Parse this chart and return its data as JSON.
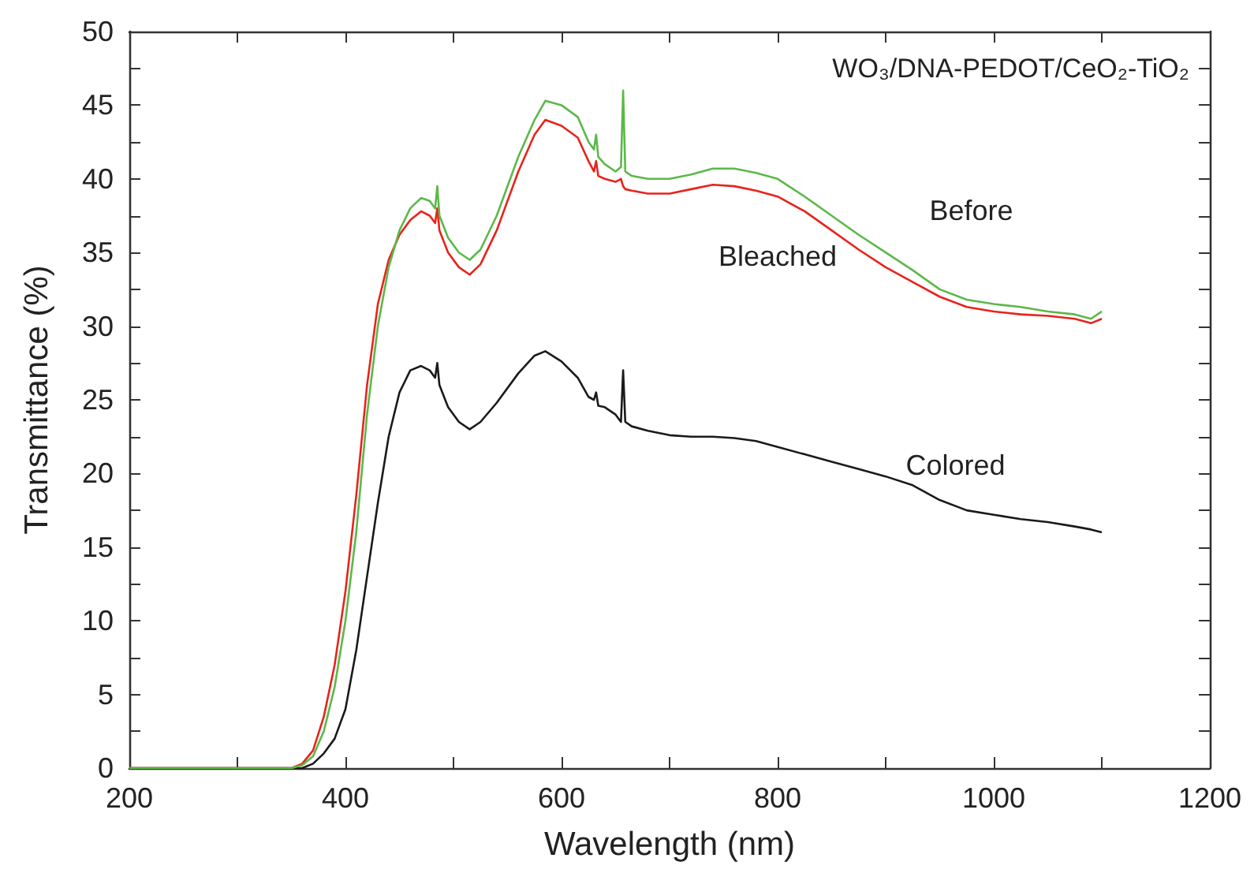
{
  "chart_data": {
    "type": "line",
    "title": "WO₃/DNA-PEDOT/CeO₂-TiO₂",
    "xlabel": "Wavelength (nm)",
    "ylabel": "Transmittance (%)",
    "xlim": [
      200,
      1200
    ],
    "xticks": [
      200,
      400,
      600,
      800,
      1000,
      1200
    ],
    "ylim": [
      0,
      50
    ],
    "yticks": [
      0,
      5,
      10,
      15,
      20,
      25,
      30,
      35,
      40,
      45,
      50
    ],
    "grid": false,
    "legend": false,
    "marker": "none",
    "line_style": "solid",
    "series": [
      {
        "name": "Before",
        "color": "#5cb848",
        "x": [
          200,
          350,
          360,
          370,
          380,
          390,
          400,
          410,
          420,
          430,
          440,
          450,
          460,
          470,
          478,
          483,
          485,
          487,
          495,
          505,
          515,
          525,
          540,
          560,
          575,
          585,
          600,
          615,
          625,
          630,
          632,
          634,
          640,
          650,
          655,
          657,
          659,
          665,
          680,
          700,
          720,
          740,
          760,
          780,
          800,
          825,
          850,
          875,
          900,
          925,
          950,
          975,
          1000,
          1025,
          1050,
          1075,
          1090,
          1100
        ],
        "values": [
          0,
          0,
          0.2,
          0.8,
          2.5,
          5.5,
          10,
          16,
          24,
          30,
          34,
          36.5,
          38,
          38.7,
          38.5,
          38,
          39.5,
          37.5,
          36,
          35,
          34.5,
          35.2,
          37.5,
          41.5,
          44,
          45.3,
          45,
          44.2,
          42.5,
          42,
          43,
          41.5,
          41,
          40.5,
          40.8,
          46,
          40.5,
          40.2,
          40,
          40,
          40.3,
          40.7,
          40.7,
          40.4,
          40,
          38.8,
          37.5,
          36.2,
          35,
          33.8,
          32.5,
          31.8,
          31.5,
          31.3,
          31,
          30.8,
          30.5,
          31
        ]
      },
      {
        "name": "Bleached",
        "color": "#e8231c",
        "x": [
          200,
          350,
          360,
          370,
          380,
          390,
          400,
          410,
          420,
          430,
          440,
          450,
          460,
          470,
          478,
          483,
          485,
          487,
          495,
          505,
          515,
          525,
          540,
          560,
          575,
          585,
          600,
          615,
          625,
          630,
          632,
          634,
          640,
          650,
          655,
          657,
          659,
          665,
          680,
          700,
          720,
          740,
          760,
          780,
          800,
          825,
          850,
          875,
          900,
          925,
          950,
          975,
          1000,
          1025,
          1050,
          1075,
          1090,
          1100
        ],
        "values": [
          0,
          0,
          0.3,
          1.2,
          3.5,
          7,
          12,
          18.5,
          26,
          31.5,
          34.5,
          36.2,
          37.2,
          37.8,
          37.5,
          37,
          38,
          36.5,
          35,
          34,
          33.5,
          34.2,
          36.5,
          40.5,
          43,
          44,
          43.6,
          42.8,
          41.2,
          40.5,
          41.2,
          40.2,
          40,
          39.8,
          40,
          39.5,
          39.3,
          39.2,
          39,
          39,
          39.3,
          39.6,
          39.5,
          39.2,
          38.8,
          37.8,
          36.5,
          35.2,
          34,
          33,
          32,
          31.3,
          31,
          30.8,
          30.7,
          30.5,
          30.2,
          30.5
        ]
      },
      {
        "name": "Colored",
        "color": "#1a1a1a",
        "x": [
          200,
          360,
          370,
          380,
          390,
          400,
          410,
          420,
          430,
          440,
          450,
          460,
          470,
          478,
          483,
          485,
          487,
          495,
          505,
          515,
          525,
          540,
          560,
          575,
          585,
          600,
          615,
          625,
          630,
          632,
          634,
          640,
          650,
          655,
          657,
          659,
          665,
          680,
          700,
          720,
          740,
          760,
          780,
          800,
          825,
          850,
          875,
          900,
          925,
          950,
          975,
          1000,
          1025,
          1050,
          1075,
          1090,
          1100
        ],
        "values": [
          0,
          0,
          0.3,
          1,
          2,
          4,
          8,
          13,
          18,
          22.5,
          25.5,
          27,
          27.3,
          27,
          26.5,
          27.5,
          26,
          24.5,
          23.5,
          23,
          23.5,
          24.8,
          26.8,
          28,
          28.3,
          27.6,
          26.5,
          25.2,
          25,
          25.5,
          24.6,
          24.5,
          24,
          23.5,
          27,
          23.5,
          23.2,
          22.9,
          22.6,
          22.5,
          22.5,
          22.4,
          22.2,
          21.8,
          21.3,
          20.8,
          20.3,
          19.8,
          19.2,
          18.2,
          17.5,
          17.2,
          16.9,
          16.7,
          16.4,
          16.2,
          16
        ]
      }
    ]
  }
}
